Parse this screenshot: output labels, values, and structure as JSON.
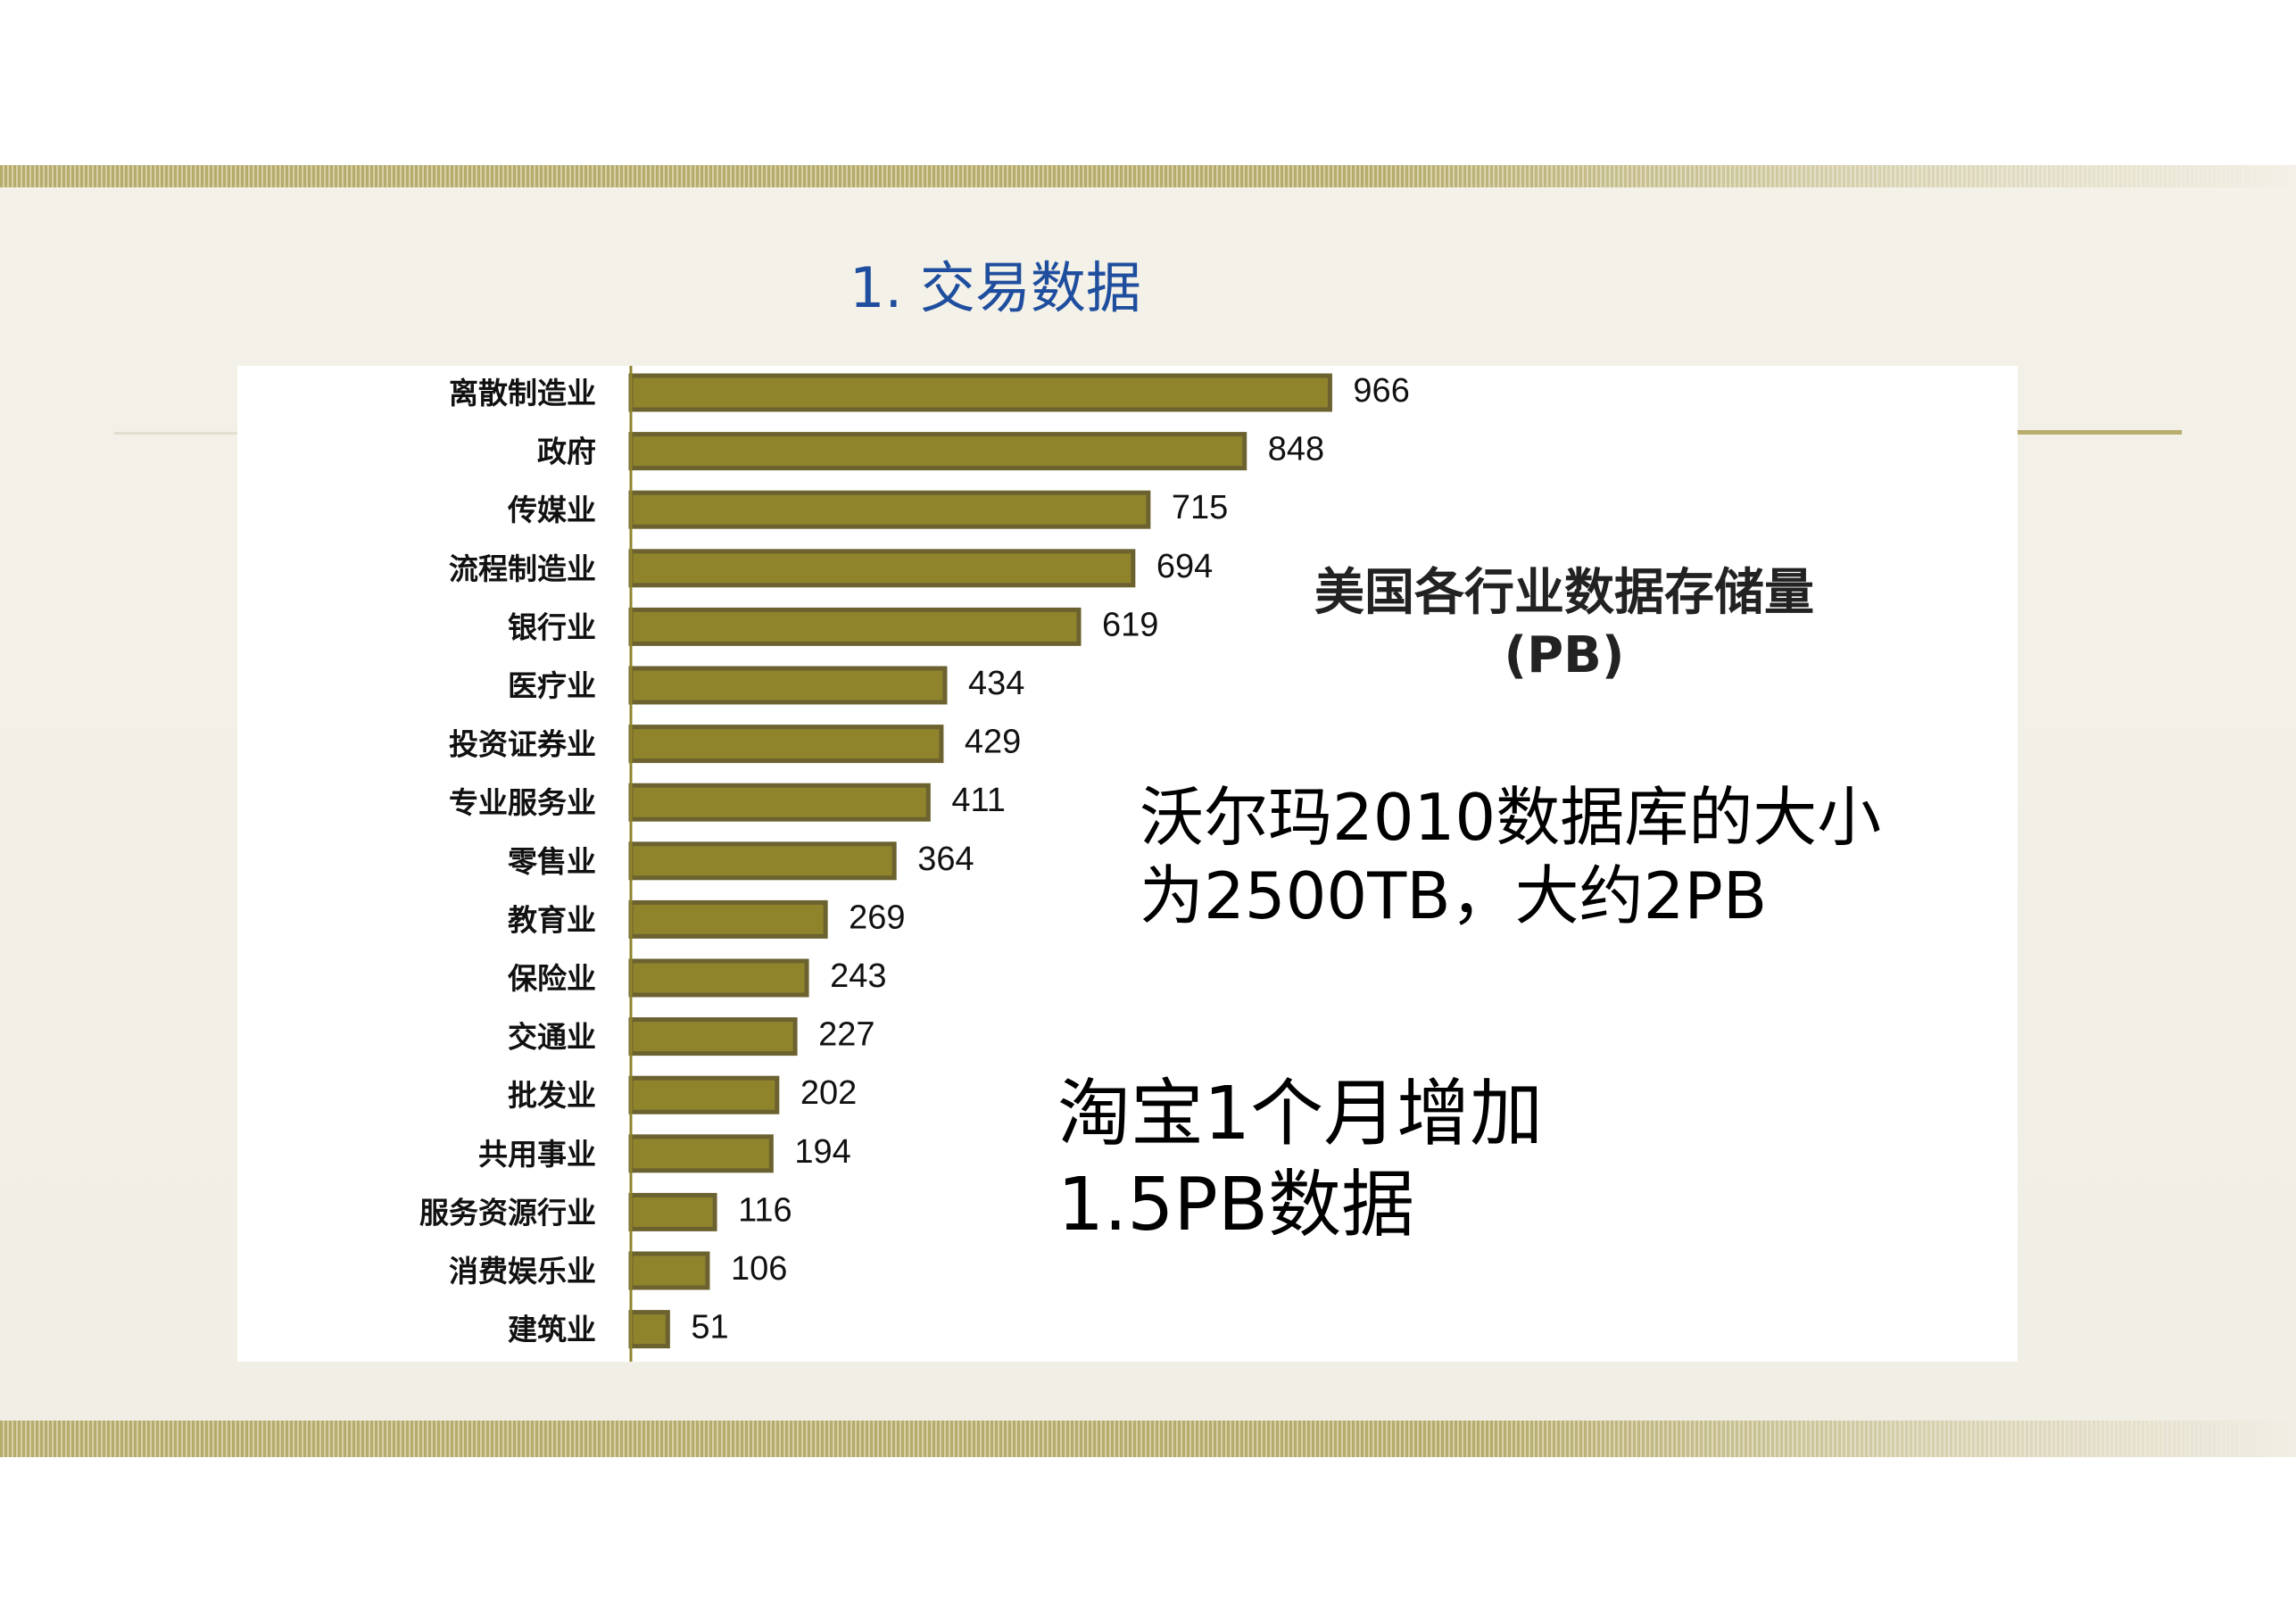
{
  "slide": {
    "title": "1. 交易数据",
    "walmart_line1": "沃尔玛2010数据库的大小",
    "walmart_line2": "为2500TB，大约2PB",
    "taobao_line1": "淘宝1个月增加",
    "taobao_line2": "1.5PB数据"
  },
  "colors": {
    "bar_fill": "#8f842c",
    "bar_edge": "#6b6230",
    "title": "#1f4e9e",
    "axis": "#8f842c"
  },
  "chart_data": {
    "type": "bar",
    "orientation": "horizontal",
    "title_line1": "美国各行业数据存储量",
    "title_line2": "(PB)",
    "categories": [
      "离散制造业",
      "政府",
      "传媒业",
      "流程制造业",
      "银行业",
      "医疗业",
      "投资证券业",
      "专业服务业",
      "零售业",
      "教育业",
      "保险业",
      "交通业",
      "批发业",
      "共用事业",
      "服务资源行业",
      "消费娱乐业",
      "建筑业"
    ],
    "values": [
      966,
      848,
      715,
      694,
      619,
      434,
      429,
      411,
      364,
      269,
      243,
      227,
      202,
      194,
      116,
      106,
      51
    ],
    "data_labels": true,
    "grid": false,
    "legend": "none"
  }
}
